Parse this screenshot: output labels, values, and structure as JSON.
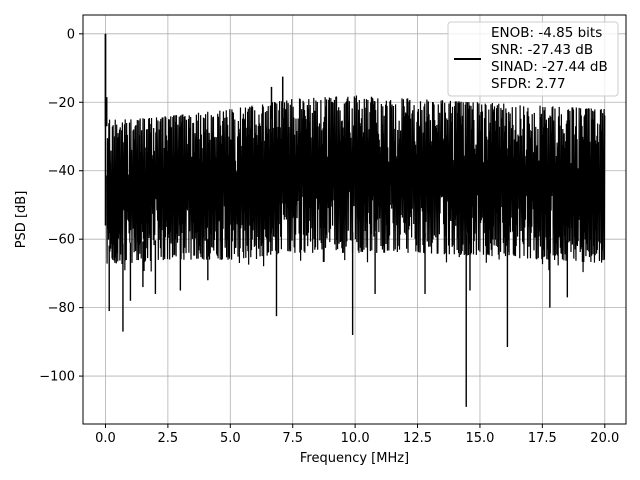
{
  "chart_data": {
    "type": "line",
    "xlabel": "Frequency [MHz]",
    "ylabel": "PSD [dB]",
    "xlim": [
      -0.9,
      20.85
    ],
    "ylim": [
      -114,
      5.5
    ],
    "xticks": [
      0.0,
      2.5,
      5.0,
      7.5,
      10.0,
      12.5,
      15.0,
      17.5,
      20.0
    ],
    "xtick_labels": [
      "0.0",
      "2.5",
      "5.0",
      "7.5",
      "10.0",
      "12.5",
      "15.0",
      "17.5",
      "20.0"
    ],
    "yticks": [
      0,
      -20,
      -40,
      -60,
      -80,
      -100
    ],
    "ytick_labels": [
      "0",
      "−20",
      "−40",
      "−60",
      "−80",
      "−100"
    ],
    "grid": true,
    "legend": {
      "placement": "top-right",
      "lines": [
        "ENOB: -4.85 bits",
        "SNR: -27.43 dB",
        "SINAD: -27.44 dB",
        "SFDR: 2.77"
      ]
    },
    "series": [
      {
        "color": "#000000",
        "band": {
          "x": [
            0.05,
            1.0,
            2.5,
            5.0,
            7.5,
            10.0,
            12.5,
            15.0,
            17.5,
            20.0
          ],
          "upper": [
            -25,
            -25,
            -24,
            -22,
            -19,
            -18,
            -19,
            -20,
            -21,
            -22
          ],
          "lower": [
            -68,
            -67,
            -66,
            -66,
            -64,
            -64,
            -64,
            -65,
            -66,
            -67
          ]
        },
        "peaks": [
          {
            "x": 0.0,
            "y": 0.0
          },
          {
            "x": 0.05,
            "y": -18.5
          },
          {
            "x": 6.65,
            "y": -15.5
          },
          {
            "x": 7.1,
            "y": -12.5
          }
        ],
        "dips": [
          {
            "x": 0.15,
            "y": -81
          },
          {
            "x": 0.7,
            "y": -87
          },
          {
            "x": 1.0,
            "y": -78
          },
          {
            "x": 1.5,
            "y": -74
          },
          {
            "x": 2.0,
            "y": -76
          },
          {
            "x": 3.0,
            "y": -75
          },
          {
            "x": 4.1,
            "y": -72
          },
          {
            "x": 6.85,
            "y": -82.5
          },
          {
            "x": 9.9,
            "y": -88
          },
          {
            "x": 10.8,
            "y": -76
          },
          {
            "x": 12.8,
            "y": -76
          },
          {
            "x": 14.45,
            "y": -109
          },
          {
            "x": 14.6,
            "y": -75
          },
          {
            "x": 16.1,
            "y": -91.5
          },
          {
            "x": 17.8,
            "y": -80
          },
          {
            "x": 18.5,
            "y": -77
          }
        ]
      }
    ]
  }
}
